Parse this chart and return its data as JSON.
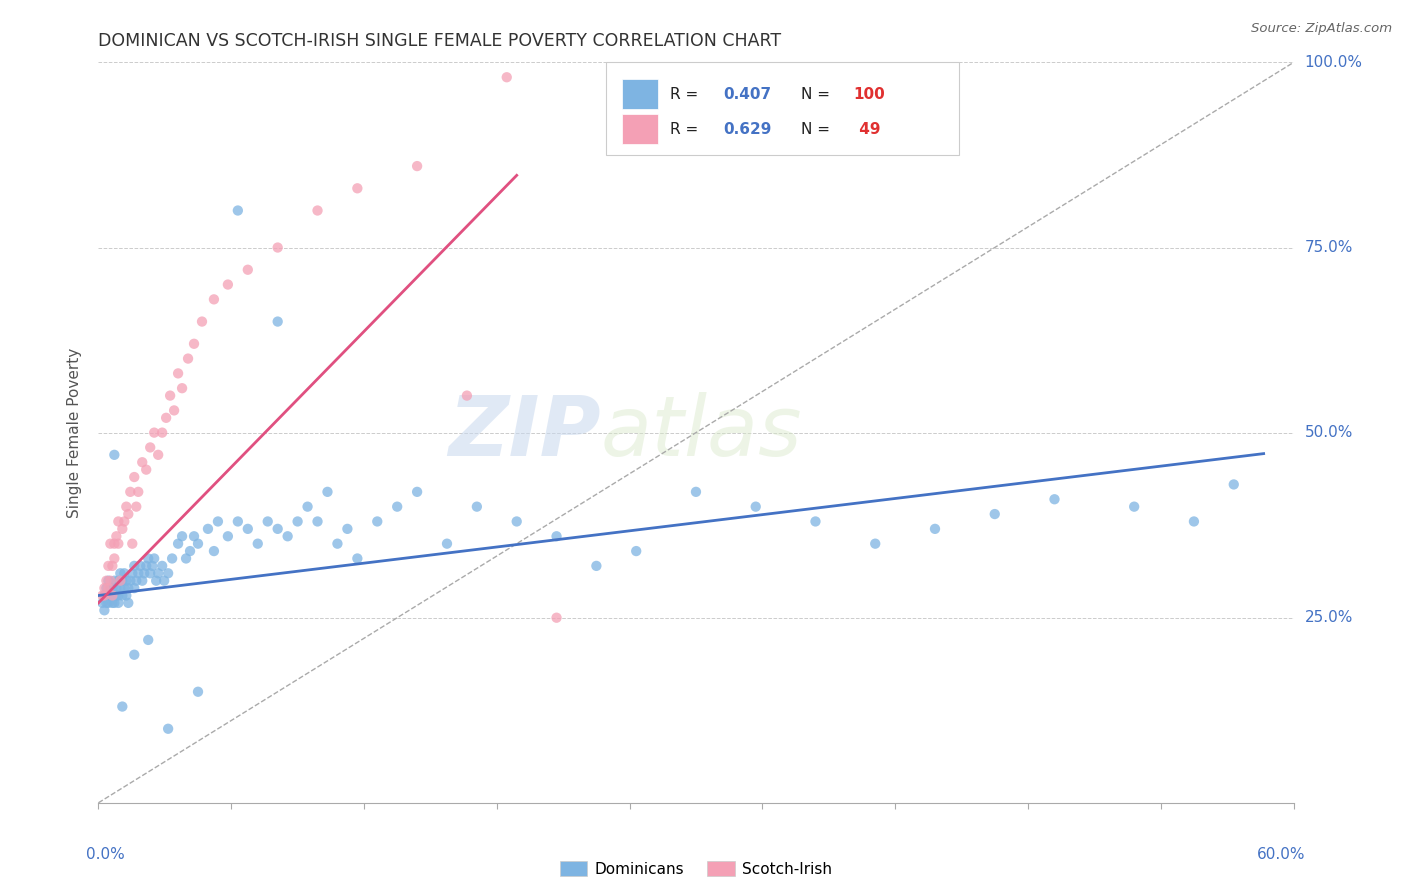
{
  "title": "DOMINICAN VS SCOTCH-IRISH SINGLE FEMALE POVERTY CORRELATION CHART",
  "source": "Source: ZipAtlas.com",
  "ylabel": "Single Female Poverty",
  "ytick_labels": [
    "",
    "25.0%",
    "50.0%",
    "75.0%",
    "100.0%"
  ],
  "xlim": [
    0.0,
    0.6
  ],
  "ylim": [
    0.0,
    1.0
  ],
  "dominicans_R": 0.407,
  "dominicans_N": 100,
  "scotchirish_R": 0.629,
  "scotchirish_N": 49,
  "dominican_color": "#7eb4e2",
  "scotchirish_color": "#f4a0b5",
  "trendline_dom_color": "#4472c4",
  "trendline_scot_color": "#e05080",
  "N_color": "#e03030",
  "watermark_zip": "ZIP",
  "watermark_atlas": "atlas",
  "background_color": "#ffffff"
}
